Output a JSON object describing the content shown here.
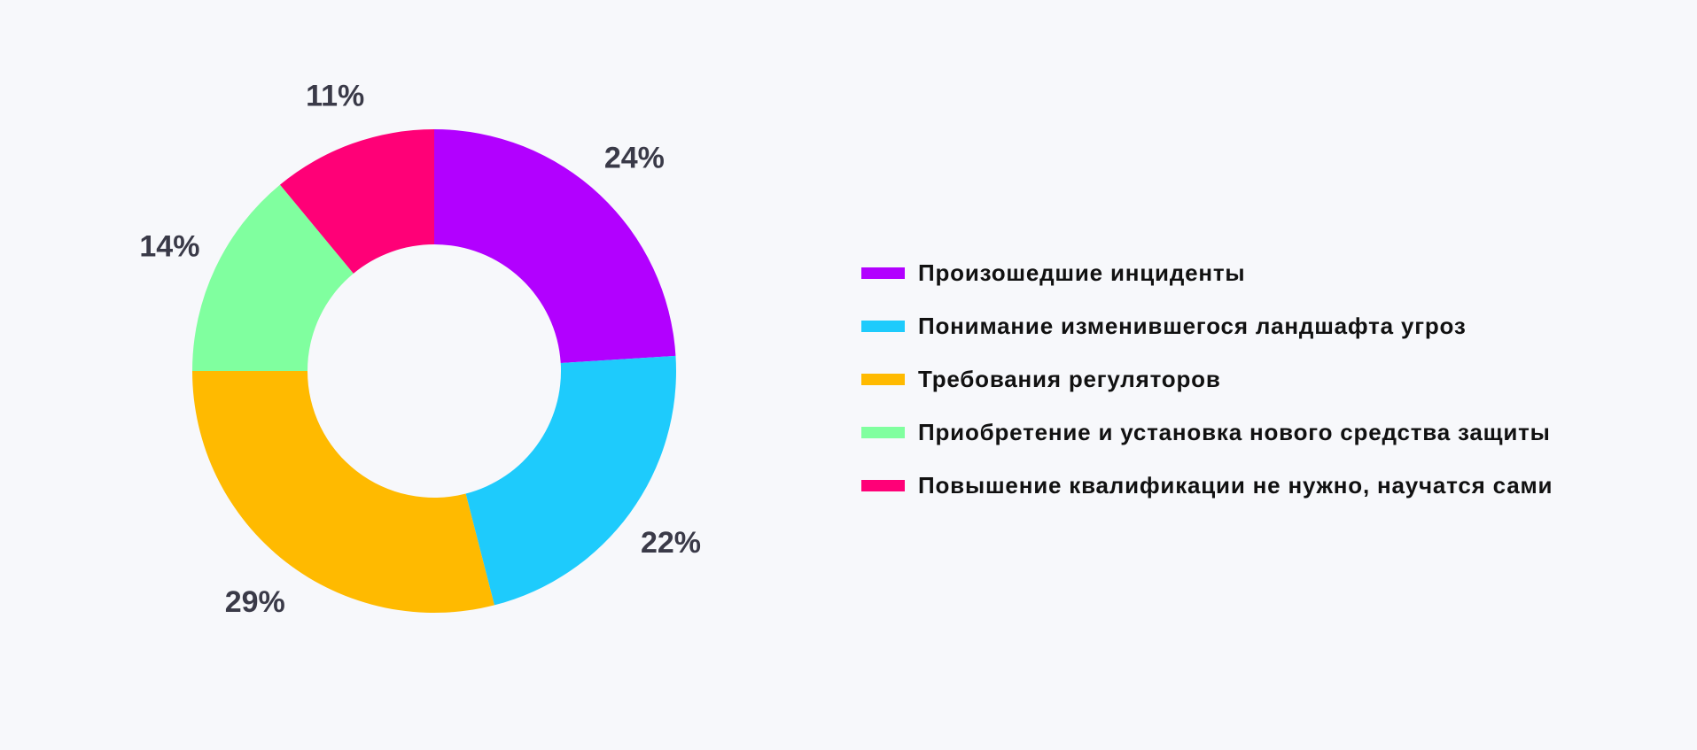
{
  "chart_data": {
    "type": "pie",
    "donut": true,
    "title": "",
    "legend_position": "right",
    "series": [
      {
        "name": "Произошедшие инциденты",
        "value": 24,
        "label": "24%",
        "color": "#b200ff"
      },
      {
        "name": "Понимание изменившегося ландшафта угроз",
        "value": 22,
        "label": "22%",
        "color": "#1ecbfc"
      },
      {
        "name": "Требования регуляторов",
        "value": 29,
        "label": "29%",
        "color": "#ffba00"
      },
      {
        "name": "Приобретение и установка нового средства защиты",
        "value": 14,
        "label": "14%",
        "color": "#80ff9f"
      },
      {
        "name": "Повышение квалификации не нужно, научатся сами",
        "value": 11,
        "label": "11%",
        "color": "#ff0077"
      }
    ]
  }
}
